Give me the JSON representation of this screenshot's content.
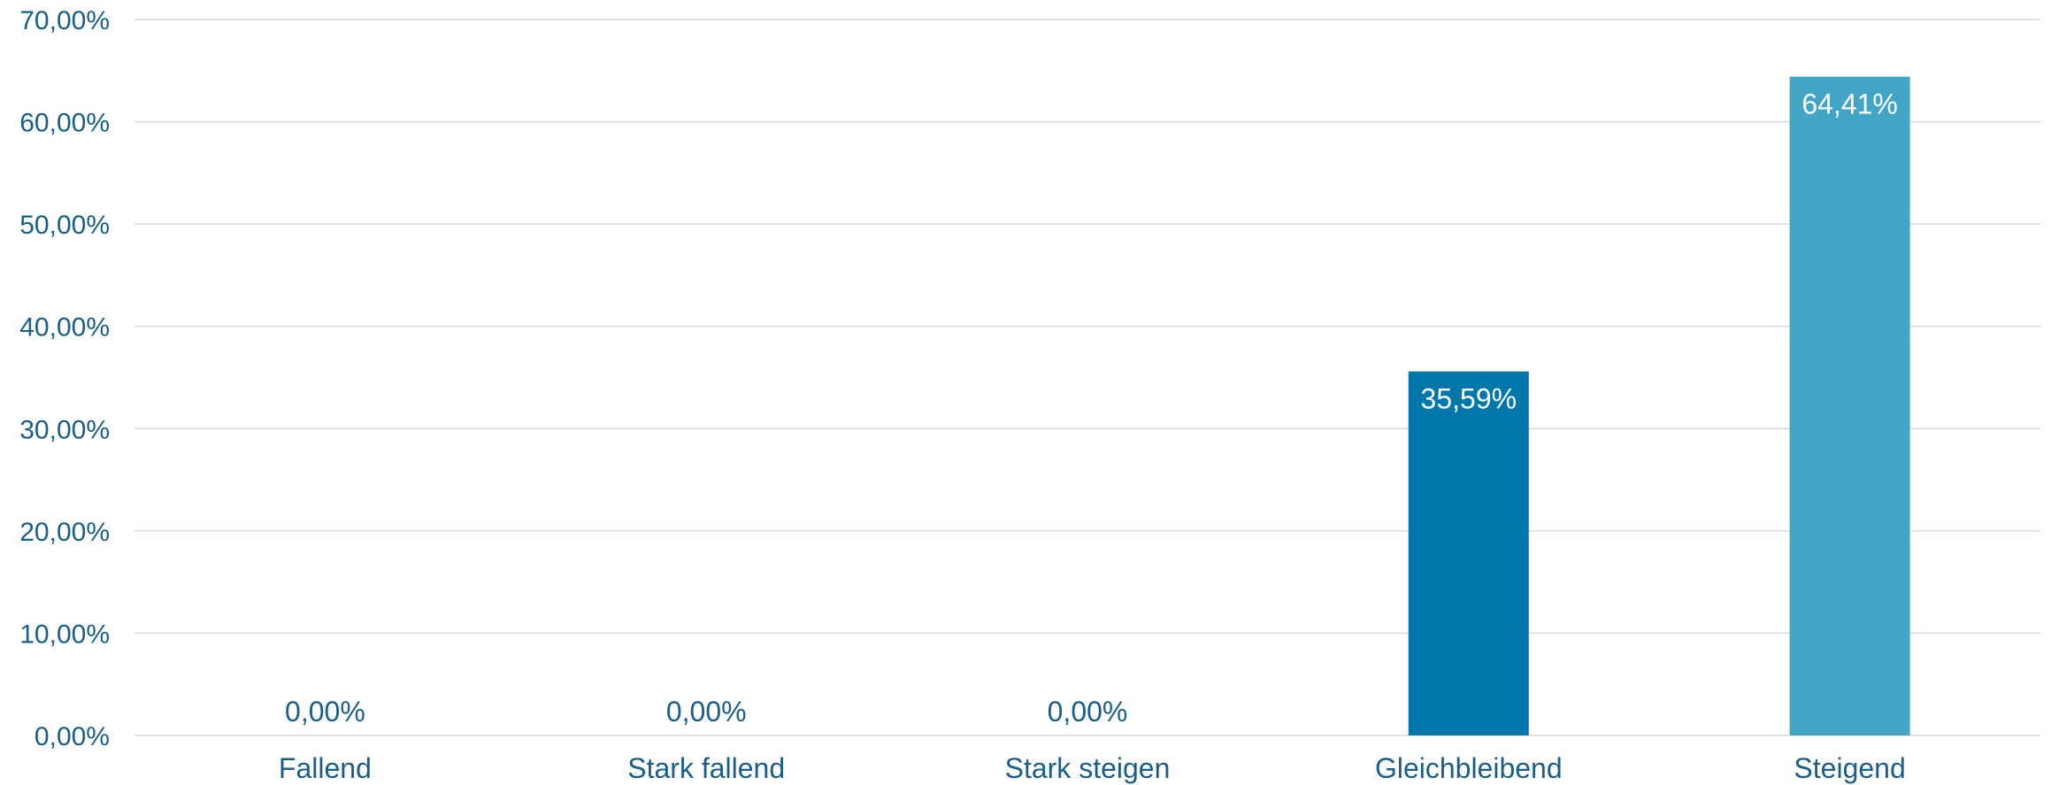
{
  "chart_data": {
    "type": "bar",
    "categories": [
      "Fallend",
      "Stark fallend",
      "Stark steigen",
      "Gleichbleibend",
      "Steigend"
    ],
    "values": [
      0.0,
      0.0,
      0.0,
      35.59,
      64.41
    ],
    "data_labels": [
      "0,00%",
      "0,00%",
      "0,00%",
      "35,59%",
      "64,41%"
    ],
    "bar_colors": [
      "#0077AA",
      "#0077AA",
      "#0077AA",
      "#0077AA",
      "#42A5C6"
    ],
    "ylim": [
      0,
      70
    ],
    "y_ticks": [
      0,
      10,
      20,
      30,
      40,
      50,
      60,
      70
    ],
    "y_tick_labels": [
      "0,00%",
      "10,00%",
      "20,00%",
      "30,00%",
      "40,00%",
      "50,00%",
      "60,00%",
      "70,00%"
    ],
    "grid": true,
    "legend": "none",
    "title": "",
    "xlabel": "",
    "ylabel": ""
  },
  "colors": {
    "axis_text": "#1B5E86",
    "grid": "#D9D9D9",
    "inside_label": "#FFFFFF",
    "outside_label": "#1B5E86"
  }
}
